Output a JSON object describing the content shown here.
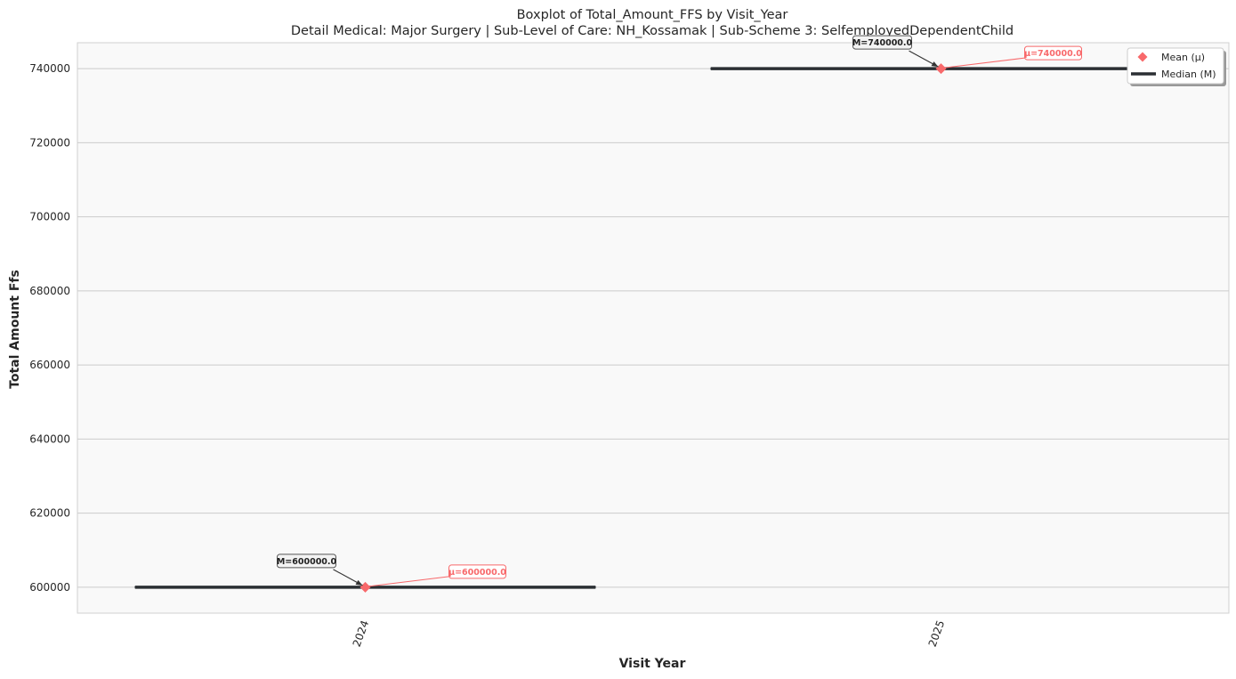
{
  "chart_data": {
    "type": "box",
    "title": "Boxplot of Total_Amount_FFS by Visit_Year",
    "subtitle": "Detail Medical: Major Surgery | Sub-Level of Care: NH_Kossamak | Sub-Scheme 3: SelfemployedDependentChild",
    "xlabel": "Visit Year",
    "ylabel": "Total Amount Ffs",
    "categories": [
      "2024",
      "2025"
    ],
    "ylim": [
      593000,
      747000
    ],
    "yticks": [
      600000,
      620000,
      640000,
      660000,
      680000,
      700000,
      720000,
      740000
    ],
    "ytick_labels": [
      "600000",
      "620000",
      "640000",
      "660000",
      "680000",
      "700000",
      "720000",
      "740000"
    ],
    "grid": "y",
    "legend_position": "top-right",
    "series": [
      {
        "category": "2024",
        "median": 600000,
        "mean": 600000,
        "q1": 600000,
        "q3": 600000,
        "min": 600000,
        "max": 600000,
        "median_label": "M=600000.0",
        "mean_label": "μ=600000.0"
      },
      {
        "category": "2025",
        "median": 740000,
        "mean": 740000,
        "q1": 740000,
        "q3": 740000,
        "min": 740000,
        "max": 740000,
        "median_label": "M=740000.0",
        "mean_label": "μ=740000.0"
      }
    ],
    "legend": {
      "mean": "Mean (μ)",
      "median": "Median (M)"
    },
    "colors": {
      "mean": "#f8696b",
      "median": "#2b2f33",
      "plot_bg": "#f9f9f9",
      "grid": "#cccccc"
    }
  }
}
